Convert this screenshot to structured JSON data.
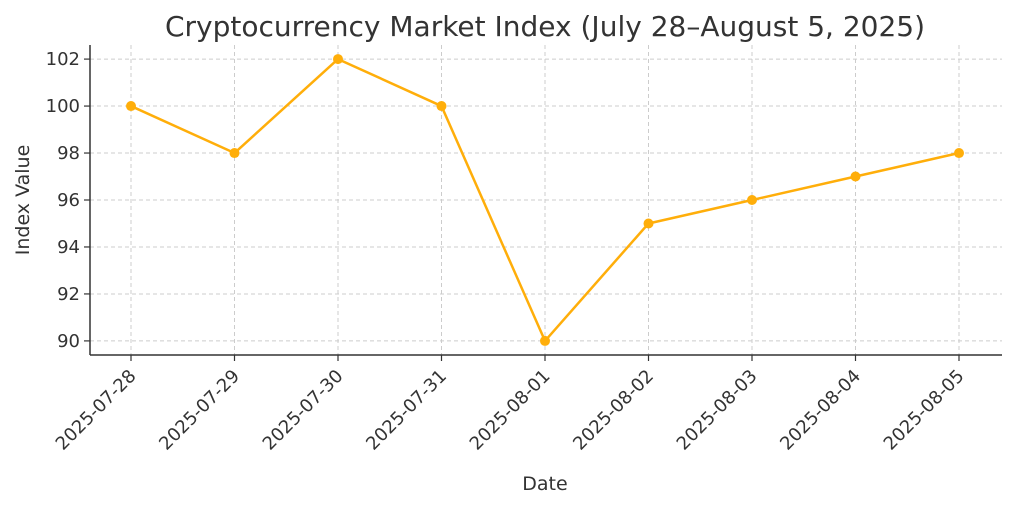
{
  "chart_data": {
    "type": "line",
    "title": "Cryptocurrency Market Index (July 28–August 5, 2025)",
    "xlabel": "Date",
    "ylabel": "Index Value",
    "categories": [
      "2025-07-28",
      "2025-07-29",
      "2025-07-30",
      "2025-07-31",
      "2025-08-01",
      "2025-08-02",
      "2025-08-03",
      "2025-08-04",
      "2025-08-05"
    ],
    "series": [
      {
        "values": [
          100,
          98,
          102,
          100,
          90,
          95,
          96,
          97,
          98
        ],
        "color": "#FFAE0A"
      }
    ],
    "yticks": [
      90,
      92,
      94,
      96,
      98,
      100,
      102
    ],
    "ylim": [
      89.4,
      102.6
    ],
    "grid": true,
    "marker": "circle"
  }
}
